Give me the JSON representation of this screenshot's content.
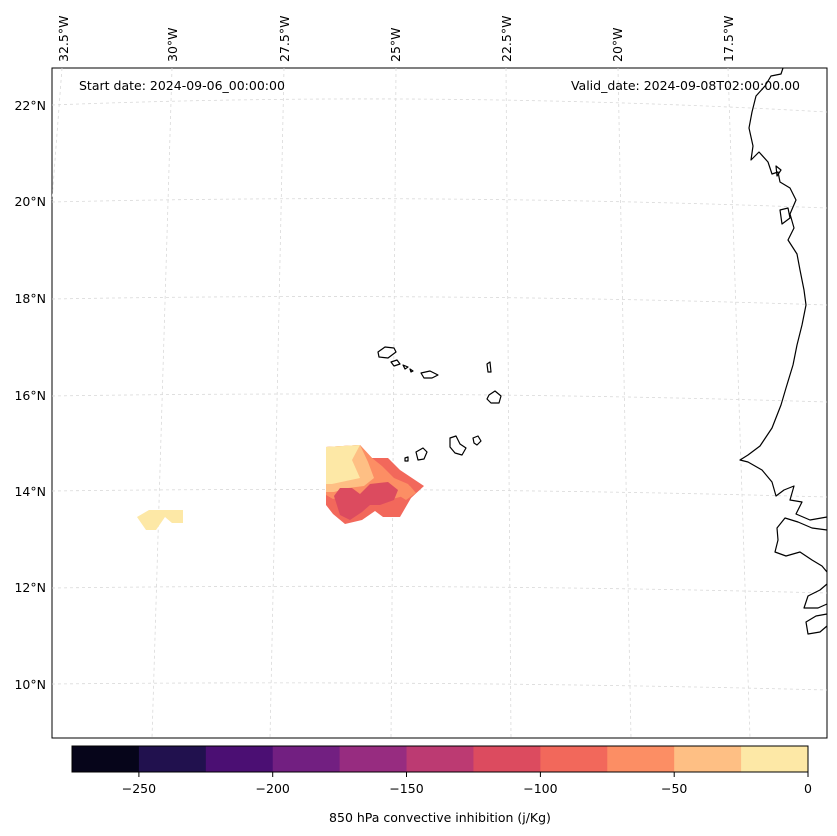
{
  "header": {
    "start_date": "Start date: 2024-09-06_00:00:00",
    "valid_date": "Valid_date: 2024-09-08T02:00:00.00"
  },
  "axes": {
    "lon_labels": [
      "32.5°W",
      "30°W",
      "27.5°W",
      "25°W",
      "22.5°W",
      "20°W",
      "17.5°W"
    ],
    "lat_labels": [
      "22°N",
      "20°N",
      "18°N",
      "16°N",
      "14°N",
      "12°N",
      "10°N"
    ]
  },
  "colorbar": {
    "label": "850 hPa convective inhibition (j/Kg)",
    "tick_labels": [
      "−250",
      "−200",
      "−150",
      "−100",
      "−50",
      "0"
    ],
    "levels": [
      -275,
      -250,
      -225,
      -200,
      -175,
      -150,
      -125,
      -100,
      -75,
      -50,
      -25,
      0
    ],
    "colors": [
      "#06051a",
      "#21114e",
      "#4b0f73",
      "#721f81",
      "#972c80",
      "#bc3a72",
      "#dc4b5f",
      "#f2685b",
      "#fc8e64",
      "#febf84",
      "#fde8a6"
    ]
  }
}
